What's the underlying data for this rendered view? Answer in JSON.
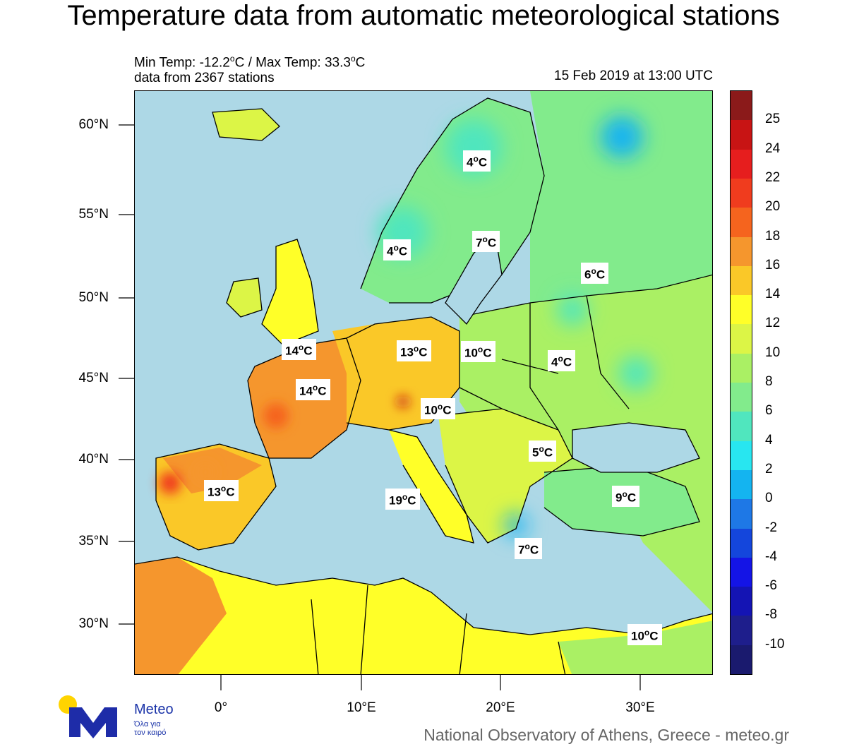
{
  "title": "Temperature data from automatic meteorological stations",
  "info": {
    "minmax_prefix": "Min Temp: -12.2",
    "minmax_mid": "C / Max Temp: 33.3",
    "minmax_suffix": "C",
    "stations": "data from 2367 stations",
    "datetime": "15 Feb 2019 at 13:00 UTC",
    "deg": "o"
  },
  "axes": {
    "lat_labels": [
      "60°N",
      "55°N",
      "50°N",
      "45°N",
      "40°N",
      "35°N",
      "30°N"
    ],
    "lon_labels": [
      "0°",
      "10°E",
      "20°E",
      "30°E"
    ]
  },
  "city_labels": [
    {
      "value": "4",
      "unit": "C"
    },
    {
      "value": "7",
      "unit": "C"
    },
    {
      "value": "4",
      "unit": "C"
    },
    {
      "value": "6",
      "unit": "C"
    },
    {
      "value": "14",
      "unit": "C"
    },
    {
      "value": "13",
      "unit": "C"
    },
    {
      "value": "10",
      "unit": "C"
    },
    {
      "value": "4",
      "unit": "C"
    },
    {
      "value": "14",
      "unit": "C"
    },
    {
      "value": "10",
      "unit": "C"
    },
    {
      "value": "5",
      "unit": "C"
    },
    {
      "value": "13",
      "unit": "C"
    },
    {
      "value": "19",
      "unit": "C"
    },
    {
      "value": "9",
      "unit": "C"
    },
    {
      "value": "7",
      "unit": "C"
    },
    {
      "value": "10",
      "unit": "C"
    }
  ],
  "colorbar": {
    "labels": [
      "25",
      "24",
      "22",
      "20",
      "18",
      "16",
      "14",
      "12",
      "10",
      "8",
      "6",
      "4",
      "2",
      "0",
      "-2",
      "-4",
      "-6",
      "-8",
      "-10"
    ],
    "colors": [
      "#8b1a1a",
      "#c81414",
      "#e61e1e",
      "#f03c1e",
      "#f5641e",
      "#f5962d",
      "#fac828",
      "#ffff28",
      "#dcf546",
      "#aaf064",
      "#82eb8c",
      "#50e6be",
      "#28e6f0",
      "#14b4f0",
      "#1e78e6",
      "#1446dc",
      "#1414e6",
      "#1414b4",
      "#1e1e8c",
      "#1a1a6e"
    ]
  },
  "logo": {
    "name": "Meteo",
    "tagline_1": "Όλα για",
    "tagline_2": "τον καιρό"
  },
  "footer": "National Observatory of Athens, Greece - meteo.gr"
}
